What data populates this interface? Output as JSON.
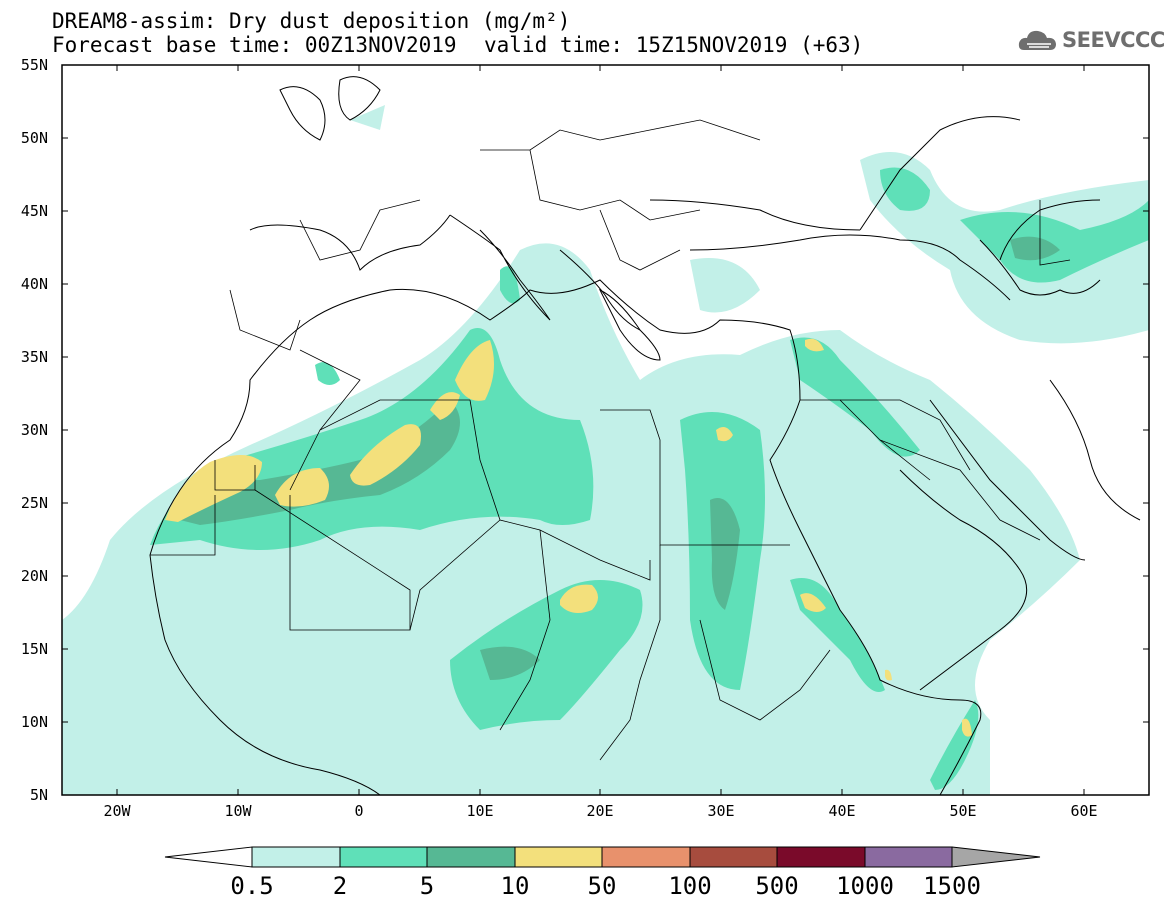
{
  "header": {
    "title": "DREAM8-assim: Dry dust deposition (mg/m²)",
    "base_time": "Forecast base time: 00Z13NOV2019",
    "valid_time": "valid time: 15Z15NOV2019 (+63)",
    "logo_text": "SEEVCCC"
  },
  "map": {
    "lat_labels": [
      "55N",
      "50N",
      "45N",
      "40N",
      "35N",
      "30N",
      "25N",
      "20N",
      "15N",
      "10N",
      "5N"
    ],
    "lon_labels": [
      "20W",
      "10W",
      "0",
      "10E",
      "20E",
      "30E",
      "40E",
      "50E",
      "60E"
    ],
    "lon_range": [
      -25,
      65
    ],
    "lat_range": [
      5,
      55
    ]
  },
  "legend": {
    "labels": [
      "0.5",
      "2",
      "5",
      "10",
      "50",
      "100",
      "500",
      "1000",
      "1500"
    ],
    "colors": [
      "#ffffff",
      "#c2f0e8",
      "#5fe0b8",
      "#56b894",
      "#f3e07c",
      "#e8916c",
      "#a74c3e",
      "#7a0a2a",
      "#8a6aa0",
      "#a6a6a6"
    ]
  }
}
